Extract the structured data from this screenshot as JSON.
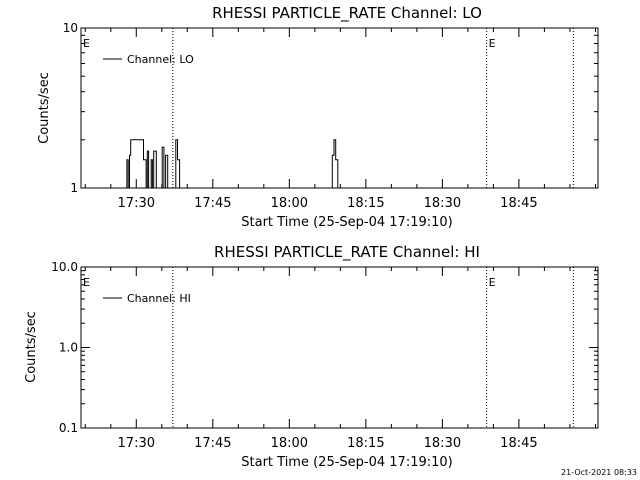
{
  "footer_stamp": "21-Oct-2021 08:33",
  "chart_data": [
    {
      "type": "line",
      "title": "RHESSI PARTICLE_RATE Channel: LO",
      "xlabel": "Start Time (25-Sep-04 17:19:10)",
      "ylabel": "Counts/sec",
      "yscale": "log",
      "ylim": [
        1,
        10
      ],
      "y_ticks": [
        {
          "value": 10,
          "label": "10"
        },
        {
          "value": 1,
          "label": "1"
        }
      ],
      "xlim": [
        "17:19:10",
        "19:00:30"
      ],
      "x_ticks": [
        "17:30",
        "17:45",
        "18:00",
        "18:15",
        "18:30",
        "18:45"
      ],
      "legend": {
        "position": "top-left",
        "entries": [
          "Channel: LO"
        ]
      },
      "series": [
        {
          "name": "Channel: LO",
          "x": [
            "17:27:25",
            "17:27:55",
            "17:28:10",
            "17:28:25",
            "17:28:40",
            "17:28:55",
            "17:29:25",
            "17:31:10",
            "17:31:25",
            "17:31:55",
            "17:32:10",
            "17:32:25",
            "17:32:55",
            "17:33:10",
            "17:33:25",
            "17:33:55",
            "17:34:40",
            "17:35:05",
            "17:35:25",
            "17:35:45",
            "17:36:10",
            "17:36:30",
            "17:37:25",
            "17:37:45",
            "17:38:05",
            "17:38:30",
            "18:08:05",
            "18:08:25",
            "18:08:45",
            "18:09:05",
            "18:09:30"
          ],
          "values": [
            1,
            1,
            1.5,
            1,
            1.6,
            2,
            2,
            2,
            1.5,
            1,
            1.7,
            1,
            1.5,
            1,
            1.7,
            1,
            1,
            1.8,
            1,
            1.6,
            1,
            1,
            1,
            2,
            1.5,
            1,
            1,
            1.6,
            2,
            1.5,
            1
          ]
        }
      ],
      "markers": [
        {
          "time": "17:19:10",
          "label": "E"
        },
        {
          "time": "17:37:10",
          "label": ""
        },
        {
          "time": "18:38:40",
          "label": "E"
        },
        {
          "time": "18:55:40",
          "label": ""
        }
      ]
    },
    {
      "type": "line",
      "title": "RHESSI PARTICLE_RATE Channel: HI",
      "xlabel": "Start Time (25-Sep-04 17:19:10)",
      "ylabel": "Counts/sec",
      "yscale": "log",
      "ylim": [
        0.1,
        10
      ],
      "y_ticks": [
        {
          "value": 10,
          "label": "10.0"
        },
        {
          "value": 1,
          "label": "1.0"
        },
        {
          "value": 0.1,
          "label": "0.1"
        }
      ],
      "xlim": [
        "17:19:10",
        "19:00:30"
      ],
      "x_ticks": [
        "17:30",
        "17:45",
        "18:00",
        "18:15",
        "18:30",
        "18:45"
      ],
      "legend": {
        "position": "top-left",
        "entries": [
          "Channel: HI"
        ]
      },
      "series": [
        {
          "name": "Channel: HI",
          "x": [],
          "values": []
        }
      ],
      "markers": [
        {
          "time": "17:19:10",
          "label": "E"
        },
        {
          "time": "17:37:10",
          "label": ""
        },
        {
          "time": "18:38:40",
          "label": "E"
        },
        {
          "time": "18:55:40",
          "label": ""
        }
      ]
    }
  ]
}
